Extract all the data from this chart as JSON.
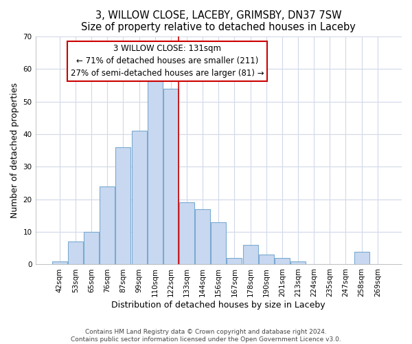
{
  "title": "3, WILLOW CLOSE, LACEBY, GRIMSBY, DN37 7SW",
  "subtitle": "Size of property relative to detached houses in Laceby",
  "xlabel": "Distribution of detached houses by size in Laceby",
  "ylabel": "Number of detached properties",
  "bar_labels": [
    "42sqm",
    "53sqm",
    "65sqm",
    "76sqm",
    "87sqm",
    "99sqm",
    "110sqm",
    "122sqm",
    "133sqm",
    "144sqm",
    "156sqm",
    "167sqm",
    "178sqm",
    "190sqm",
    "201sqm",
    "213sqm",
    "224sqm",
    "235sqm",
    "247sqm",
    "258sqm",
    "269sqm"
  ],
  "bar_values": [
    1,
    7,
    10,
    24,
    36,
    41,
    57,
    54,
    19,
    17,
    13,
    2,
    6,
    3,
    2,
    1,
    0,
    0,
    0,
    4,
    0
  ],
  "bar_color": "#c8d8f0",
  "bar_edge_color": "#7aaad0",
  "annotation_text": "3 WILLOW CLOSE: 131sqm\n← 71% of detached houses are smaller (211)\n27% of semi-detached houses are larger (81) →",
  "annotation_box_color": "#ffffff",
  "annotation_box_edge_color": "#cc0000",
  "vline_color": "#cc0000",
  "ylim": [
    0,
    70
  ],
  "yticks": [
    0,
    10,
    20,
    30,
    40,
    50,
    60,
    70
  ],
  "footer1": "Contains HM Land Registry data © Crown copyright and database right 2024.",
  "footer2": "Contains public sector information licensed under the Open Government Licence v3.0.",
  "bg_color": "#ffffff",
  "grid_color": "#d0d8e8",
  "title_fontsize": 10.5,
  "axis_label_fontsize": 9,
  "tick_fontsize": 7.5,
  "footer_fontsize": 6.5,
  "annotation_fontsize": 8.5
}
